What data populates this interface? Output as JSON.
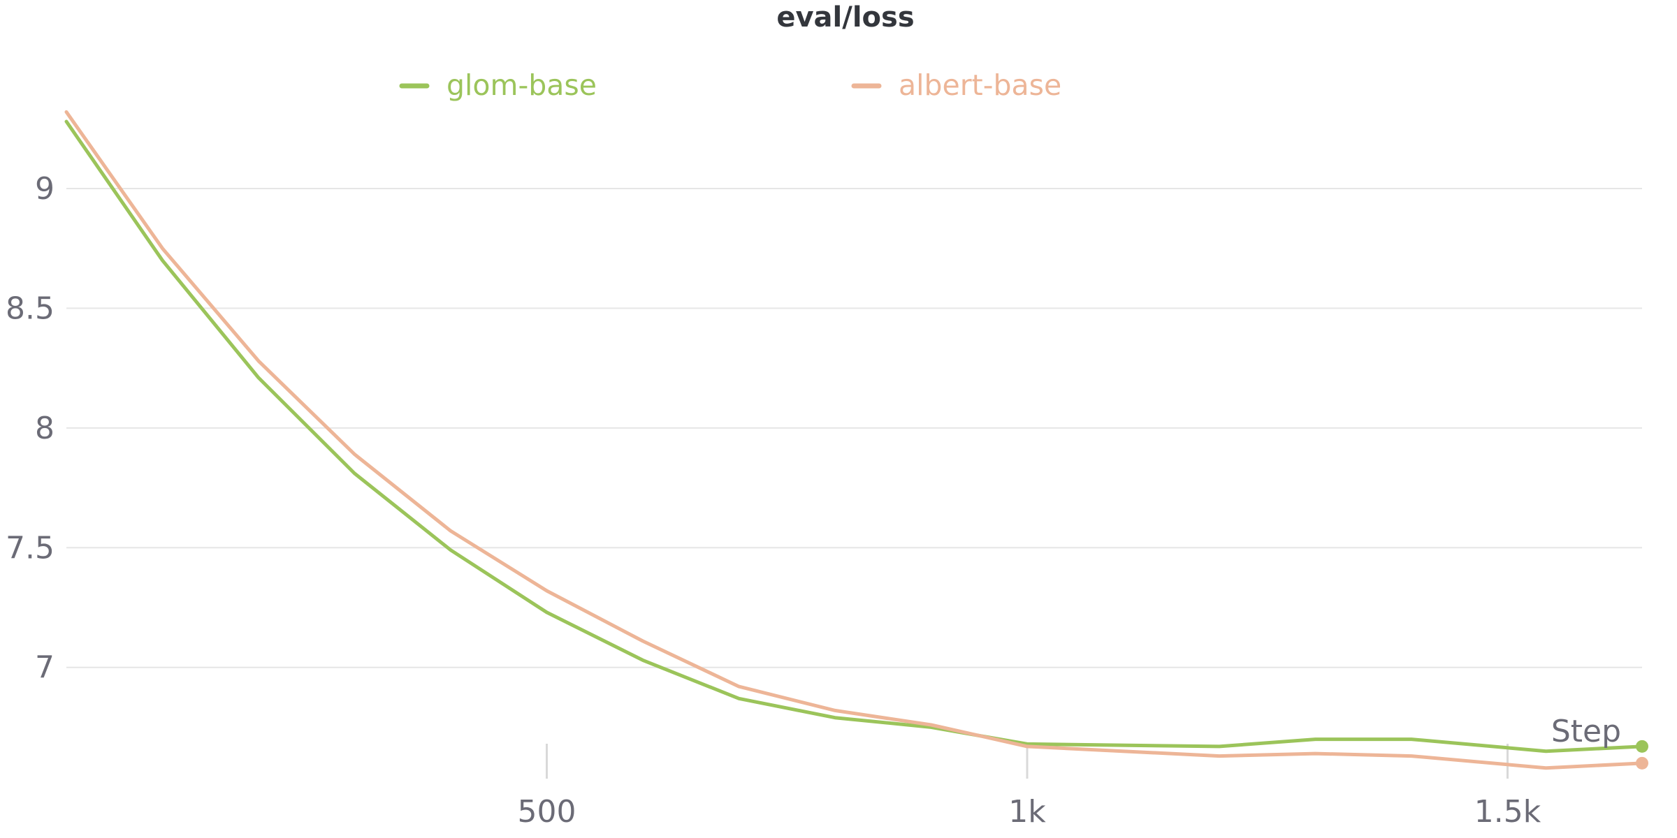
{
  "chart_data": {
    "type": "line",
    "title": "eval/loss",
    "xlabel": "Step",
    "ylabel": "",
    "xlim": [
      0,
      1640
    ],
    "ylim": [
      6.55,
      9.35
    ],
    "yticks": [
      7,
      7.5,
      8,
      8.5,
      9
    ],
    "ytick_labels": [
      "7",
      "7.5",
      "8",
      "8.5",
      "9"
    ],
    "xticks": [
      500,
      1000,
      1500
    ],
    "xtick_labels": [
      "500",
      "1k",
      "1.5k"
    ],
    "grid": "horizontal",
    "legend_position": "top-center",
    "series": [
      {
        "name": "glom-base",
        "color": "#9bc45a",
        "points": [
          [
            0,
            9.28
          ],
          [
            100,
            8.7
          ],
          [
            200,
            8.21
          ],
          [
            300,
            7.81
          ],
          [
            400,
            7.49
          ],
          [
            500,
            7.23
          ],
          [
            600,
            7.03
          ],
          [
            700,
            6.87
          ],
          [
            800,
            6.79
          ],
          [
            900,
            6.75
          ],
          [
            1000,
            6.68
          ],
          [
            1200,
            6.67
          ],
          [
            1300,
            6.7
          ],
          [
            1400,
            6.7
          ],
          [
            1540,
            6.65
          ],
          [
            1640,
            6.67
          ]
        ]
      },
      {
        "name": "albert-base",
        "color": "#edb597",
        "points": [
          [
            0,
            9.32
          ],
          [
            100,
            8.75
          ],
          [
            200,
            8.28
          ],
          [
            300,
            7.89
          ],
          [
            400,
            7.57
          ],
          [
            500,
            7.32
          ],
          [
            600,
            7.11
          ],
          [
            700,
            6.92
          ],
          [
            800,
            6.82
          ],
          [
            900,
            6.76
          ],
          [
            1000,
            6.67
          ],
          [
            1200,
            6.63
          ],
          [
            1300,
            6.64
          ],
          [
            1400,
            6.63
          ],
          [
            1540,
            6.58
          ],
          [
            1640,
            6.6
          ]
        ]
      }
    ]
  }
}
